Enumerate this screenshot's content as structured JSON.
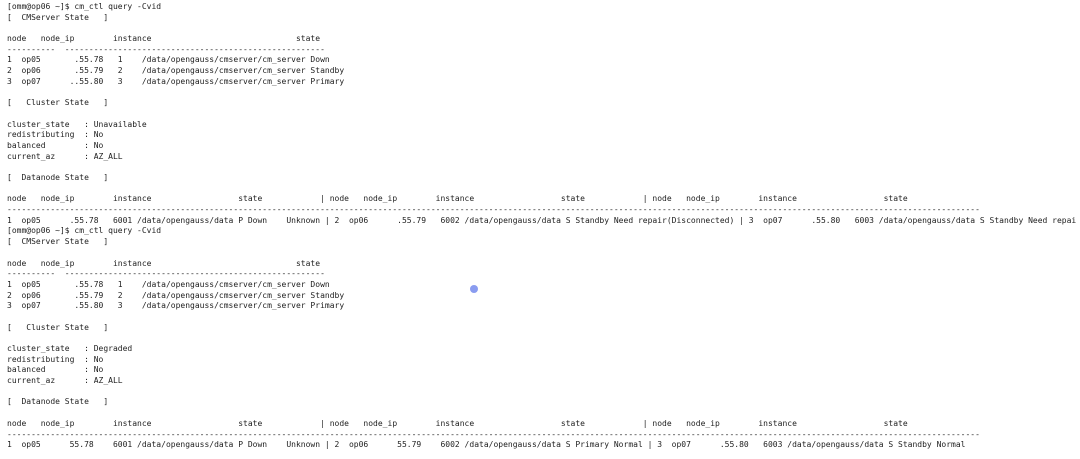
{
  "blocks": [
    [
      "[omm@op06 ~]$ cm_ctl query -Cvid",
      "[  CMServer State   ]"
    ],
    [
      "node   node_ip        instance                              state",
      "----------  ------------------------------------------------------",
      "1  op05       .55.78   1    /data/opengauss/cmserver/cm_server Down",
      "2  op06       .55.79   2    /data/opengauss/cmserver/cm_server Standby",
      "3  op07      ..55.80   3    /data/opengauss/cmserver/cm_server Primary"
    ],
    [
      "[   Cluster State   ]"
    ],
    [
      "cluster_state   : Unavailable",
      "redistributing  : No",
      "balanced        : No",
      "current_az      : AZ_ALL"
    ],
    [
      "[  Datanode State   ]"
    ],
    [
      "node   node_ip        instance                  state            | node   node_ip        instance                  state            | node   node_ip        instance                  state",
      "----------------------------------------------------------------------------------------------------------------------------------------------------------------------------------------------------------",
      "1  op05      .55.78   6001 /data/opengauss/data P Down    Unknown | 2  op06      .55.79   6002 /data/opengauss/data S Standby Need repair(Disconnected) | 3  op07      .55.80   6003 /data/opengauss/data S Standby Need repai",
      "[omm@op06 ~]$ cm_ctl query -Cvid",
      "[  CMServer State   ]"
    ],
    [
      "node   node_ip        instance                              state",
      "----------  ------------------------------------------------------",
      "1  op05       .55.78   1    /data/opengauss/cmserver/cm_server Down",
      "2  op06       .55.79   2    /data/opengauss/cmserver/cm_server Standby",
      "3  op07       .55.80   3    /data/opengauss/cmserver/cm_server Primary"
    ],
    [
      "[   Cluster State   ]"
    ],
    [
      "cluster_state   : Degraded",
      "redistributing  : No",
      "balanced        : No",
      "current_az      : AZ_ALL"
    ],
    [
      "[  Datanode State   ]"
    ],
    [
      "node   node_ip        instance                  state            | node   node_ip        instance                  state            | node   node_ip        instance                  state",
      "----------------------------------------------------------------------------------------------------------------------------------------------------------------------------------------------------------",
      "1  op05      55.78    6001 /data/opengauss/data P Down    Unknown | 2  op06      55.79    6002 /data/opengauss/data S Primary Normal | 3  op07      .55.80   6003 /data/opengauss/data S Standby Normal"
    ]
  ]
}
